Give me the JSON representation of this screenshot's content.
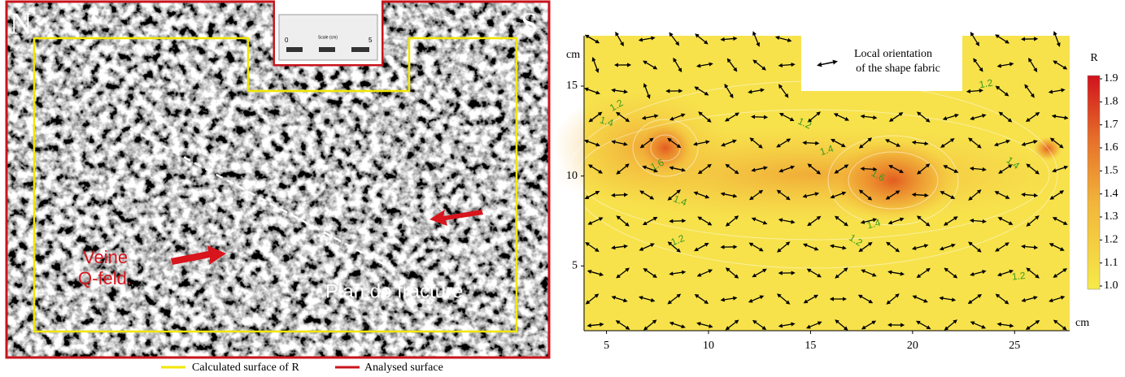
{
  "left_panel": {
    "labels": {
      "north": "N",
      "south": "S",
      "vein_line1": "Veine",
      "vein_line2": "Q-feld.",
      "fracture": "Plan de fracture"
    },
    "scale_bar": {
      "start": "0",
      "title": "Scale (cm)",
      "end": "5"
    },
    "legend": [
      {
        "label": "Calculated surface of R",
        "color": "#f2e600"
      },
      {
        "label": "Analysed surface",
        "color": "#c8141c"
      }
    ]
  },
  "right_panel": {
    "annotation_line1": "Local orientation",
    "annotation_line2": "of the shape fabric",
    "x_unit": "cm",
    "y_unit": "cm",
    "xlim": [
      3.9,
      27.7
    ],
    "ylim": [
      1.4,
      17.8
    ],
    "xticks": [
      5,
      10,
      15,
      20,
      25
    ],
    "yticks": [
      5,
      10,
      15
    ],
    "colorbar": {
      "title": "R",
      "lim": [
        1.0,
        1.9
      ],
      "ticks": [
        {
          "value": 1.0,
          "label": "1.0"
        },
        1.1,
        1.2,
        1.3,
        1.4,
        1.5,
        1.6,
        1.7,
        1.8,
        1.9
      ]
    },
    "contour_labels": [
      {
        "value": 1.2,
        "x": 5.5,
        "y": 13.9
      },
      {
        "value": 1.4,
        "x": 5.0,
        "y": 13.0
      },
      {
        "value": 1.6,
        "x": 7.5,
        "y": 10.6
      },
      {
        "value": 1.4,
        "x": 8.6,
        "y": 8.6
      },
      {
        "value": 1.2,
        "x": 8.5,
        "y": 6.4
      },
      {
        "value": 1.2,
        "x": 14.7,
        "y": 12.9
      },
      {
        "value": 1.4,
        "x": 15.8,
        "y": 11.4
      },
      {
        "value": 1.6,
        "x": 18.3,
        "y": 10.0
      },
      {
        "value": 1.4,
        "x": 18.1,
        "y": 7.3
      },
      {
        "value": 1.2,
        "x": 17.2,
        "y": 6.4
      },
      {
        "value": 1.2,
        "x": 23.6,
        "y": 15.1
      },
      {
        "value": 1.4,
        "x": 24.9,
        "y": 10.7
      },
      {
        "value": 1.2,
        "x": 25.2,
        "y": 4.4
      }
    ]
  }
}
